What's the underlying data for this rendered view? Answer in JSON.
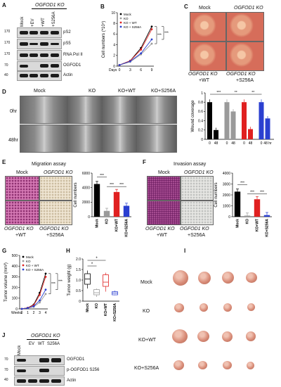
{
  "panels": {
    "A": "A",
    "B": "B",
    "C": "C",
    "D": "D",
    "E": "E",
    "F": "F",
    "G": "G",
    "H": "H",
    "I": "I",
    "J": "J"
  },
  "panelA": {
    "header": "OGFOD1 KO",
    "lanes": [
      "Mock",
      "+EV",
      "+WT",
      "+S256A"
    ],
    "mw": [
      "170",
      "170",
      "170",
      "70",
      "40"
    ],
    "rows": [
      "pS2",
      "pS5",
      "RNA Pol II",
      "OGFOD1",
      "Actin"
    ]
  },
  "panelB": {
    "ylabel": "Cell numbers (*10⁴)",
    "xlabel": "Days",
    "legend": [
      "Mock",
      "KO",
      "KO + WT",
      "KO + S256A"
    ],
    "sig": [
      "***",
      "***"
    ],
    "chart_data": {
      "type": "line",
      "x": [
        0,
        3,
        6,
        9
      ],
      "ylim": [
        0,
        10
      ],
      "ytick_labels": [
        "0",
        "2",
        "4",
        "6",
        "8",
        "10"
      ],
      "xtick_labels": [
        "0",
        "3",
        "6",
        "9"
      ],
      "series": [
        {
          "name": "Mock",
          "color": "#000000",
          "values": [
            0.2,
            1.0,
            3.4,
            7.4
          ]
        },
        {
          "name": "KO",
          "color": "#9a9a9a",
          "values": [
            0.2,
            0.8,
            2.2,
            4.2
          ]
        },
        {
          "name": "KO + WT",
          "color": "#e02020",
          "values": [
            0.2,
            1.0,
            3.1,
            6.9
          ]
        },
        {
          "name": "KO + S256A",
          "color": "#2a3fd0",
          "values": [
            0.2,
            0.9,
            2.4,
            5.0
          ]
        }
      ]
    }
  },
  "panelC": {
    "top": [
      "Mock",
      "OGFOD1 KO"
    ],
    "bottom": [
      "OGFOD1 KO",
      "OGFOD1 KO"
    ],
    "bottom2": [
      "+WT",
      "+S256A"
    ]
  },
  "panelD": {
    "cols": [
      "Mock",
      "KO",
      "KO+WT",
      "KO+S256A"
    ],
    "rows": [
      "0hr",
      "48hr"
    ],
    "ylabel": "Wound coverage",
    "sig": [
      "***",
      "**",
      "**",
      "**"
    ],
    "chart_data": {
      "type": "bar",
      "categories": [
        "Mock",
        "KO",
        "KO+WT",
        "KO+S256A"
      ],
      "xtick_labels": [
        "0",
        "48",
        "0",
        "48",
        "0",
        "48",
        "0",
        "48 hr"
      ],
      "ylim": [
        0,
        1
      ],
      "ytick_labels": [
        "0",
        "0.2",
        "0.4",
        "0.6",
        "0.8",
        "1"
      ],
      "series": [
        {
          "name": "0",
          "values": [
            0.8,
            0.8,
            0.8,
            0.8
          ]
        },
        {
          "name": "48",
          "values": [
            0.2,
            0.6,
            0.22,
            0.45
          ]
        }
      ],
      "colors": [
        "#000000",
        "#9a9a9a",
        "#e02020",
        "#2a3fd0"
      ]
    }
  },
  "panelE": {
    "title": "Migration assay",
    "left": [
      "Mock",
      "OGFOD1 KO"
    ],
    "bottom": [
      "OGFOD1 KO",
      "OGFOD1 KO"
    ],
    "bottom2": [
      "+WT",
      "+S256A"
    ],
    "ylabel": "Cell numbers",
    "sig": [
      "***",
      "***",
      "***"
    ],
    "chart_data": {
      "type": "bar",
      "categories": [
        "Mock",
        "KO",
        "KO+WT",
        "KO+S256A"
      ],
      "values": [
        4500,
        800,
        3400,
        1500
      ],
      "ylim": [
        0,
        6000
      ],
      "ytick_labels": [
        "0",
        "2000",
        "4000",
        "6000"
      ],
      "colors": [
        "#000000",
        "#9a9a9a",
        "#e02020",
        "#2a3fd0"
      ]
    }
  },
  "panelF": {
    "title": "Invasion assay",
    "left": [
      "Mock",
      "OGFOD1 KO"
    ],
    "bottom": [
      "OGFOD1 KO",
      "OGFOD1 KO"
    ],
    "bottom2": [
      "+WT",
      "+S256A"
    ],
    "ylabel": "Cell numbers",
    "sig": [
      "***",
      "***",
      "***"
    ],
    "chart_data": {
      "type": "bar",
      "categories": [
        "Mock",
        "KO",
        "KO+WT",
        "KO+S256A"
      ],
      "values": [
        2300,
        100,
        1600,
        150
      ],
      "ylim": [
        0,
        4000
      ],
      "ytick_labels": [
        "0",
        "1000",
        "2000",
        "3000",
        "4000"
      ],
      "colors": [
        "#000000",
        "#9a9a9a",
        "#e02020",
        "#2a3fd0"
      ]
    }
  },
  "panelG": {
    "ylabel": "Tumor volume (mm³)",
    "xlabel": "Weeks",
    "legend": [
      "Mock",
      "KO",
      "KO + WT",
      "KO + S256A"
    ],
    "sig": [
      "***",
      "***"
    ],
    "chart_data": {
      "type": "line",
      "x": [
        0,
        1,
        2,
        3,
        4
      ],
      "ylim": [
        0,
        500
      ],
      "ytick_labels": [
        "0",
        "100",
        "200",
        "300",
        "400",
        "500"
      ],
      "xtick_labels": [
        "0",
        "1",
        "2",
        "3",
        "4"
      ],
      "series": [
        {
          "name": "Mock",
          "color": "#000000",
          "values": [
            0,
            10,
            40,
            150,
            330
          ]
        },
        {
          "name": "KO",
          "color": "#9a9a9a",
          "values": [
            0,
            8,
            20,
            60,
            140
          ]
        },
        {
          "name": "KO + WT",
          "color": "#e02020",
          "values": [
            0,
            10,
            35,
            130,
            300
          ]
        },
        {
          "name": "KO + S256A",
          "color": "#2a3fd0",
          "values": [
            0,
            8,
            25,
            80,
            180
          ]
        }
      ]
    }
  },
  "panelH": {
    "ylabel": "Tumor weight (g)",
    "sig": [
      "*",
      "*"
    ],
    "chart_data": {
      "type": "box",
      "categories": [
        "Mock",
        "KO",
        "KO+WT",
        "KO+S256A"
      ],
      "ylim": [
        0,
        2.0
      ],
      "ytick_labels": [
        "0",
        "0.5",
        "1.0",
        "1.5",
        "2.0"
      ],
      "boxes": [
        {
          "q1": 0.8,
          "median": 1.05,
          "q3": 1.3,
          "min": 0.6,
          "max": 1.45,
          "color": "#000000"
        },
        {
          "q1": 0.3,
          "median": 0.4,
          "q3": 0.55,
          "min": 0.2,
          "max": 0.6,
          "color": "#9a9a9a"
        },
        {
          "q1": 0.7,
          "median": 0.9,
          "q3": 1.25,
          "min": 0.45,
          "max": 1.35,
          "color": "#e02020"
        },
        {
          "q1": 0.3,
          "median": 0.38,
          "q3": 0.45,
          "min": 0.28,
          "max": 0.5,
          "color": "#2a3fd0"
        }
      ]
    }
  },
  "panelI": {
    "rows": [
      "Mock",
      "KO",
      "KO+WT",
      "KO+S256A"
    ]
  },
  "panelJ": {
    "header": "OGFOD1 KO",
    "lanes": [
      "Mock",
      "EV",
      "WT",
      "S256A"
    ],
    "mw": [
      "70",
      "70",
      "40"
    ],
    "rows": [
      "OGFOD1",
      "p-OGFOD1  S256",
      "Actin"
    ]
  }
}
